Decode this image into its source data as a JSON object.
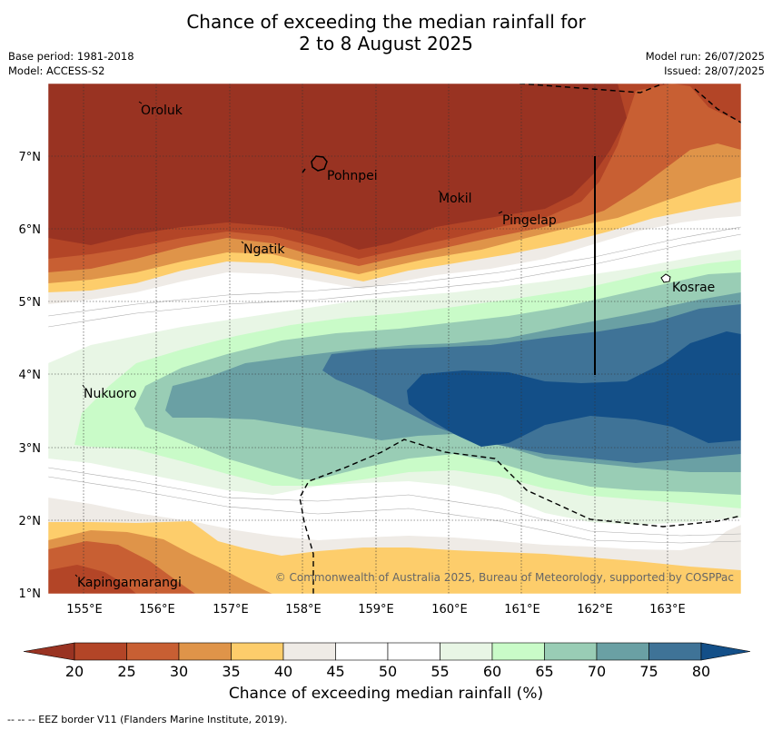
{
  "title_line1": "Chance of exceeding the median rainfall for",
  "title_line2": "2 to 8 August 2025",
  "meta": {
    "base_period": "Base period: 1981-2018",
    "model": "Model: ACCESS-S2",
    "model_run": "Model run: 26/07/2025",
    "issued": "Issued: 28/07/2025"
  },
  "lat_labels": [
    "7°N",
    "6°N",
    "5°N",
    "4°N",
    "3°N",
    "2°N",
    "1°N"
  ],
  "lon_labels": [
    "155°E",
    "156°E",
    "157°E",
    "158°E",
    "159°E",
    "160°E",
    "161°E",
    "162°E",
    "163°E"
  ],
  "places": [
    {
      "name": "Oroluk"
    },
    {
      "name": "Pohnpei"
    },
    {
      "name": "Mokil"
    },
    {
      "name": "Pingelap"
    },
    {
      "name": "Ngatik"
    },
    {
      "name": "Kosrae"
    },
    {
      "name": "Nukuoro"
    },
    {
      "name": "Kapingamarangi"
    }
  ],
  "copyright": "© Commonwealth of Australia 2025, Bureau of Meteorology, supported by COSPPac",
  "colorbar": {
    "ticks": [
      "20",
      "25",
      "30",
      "35",
      "40",
      "45",
      "50",
      "55",
      "60",
      "65",
      "70",
      "75",
      "80"
    ],
    "colors": [
      "#993322",
      "#b34527",
      "#c85f33",
      "#df9449",
      "#fdcd6b",
      "#efebe6",
      "#ffffff",
      "#ffffff",
      "#e8f6e5",
      "#c9fbc8",
      "#99cdb5",
      "#6aa0a4",
      "#3f7397",
      "#134f88"
    ],
    "label": "Chance of exceeding median rainfall (%)"
  },
  "footnote": "--  --  -- EEZ border V11 (Flanders Marine Institute, 2019)."
}
